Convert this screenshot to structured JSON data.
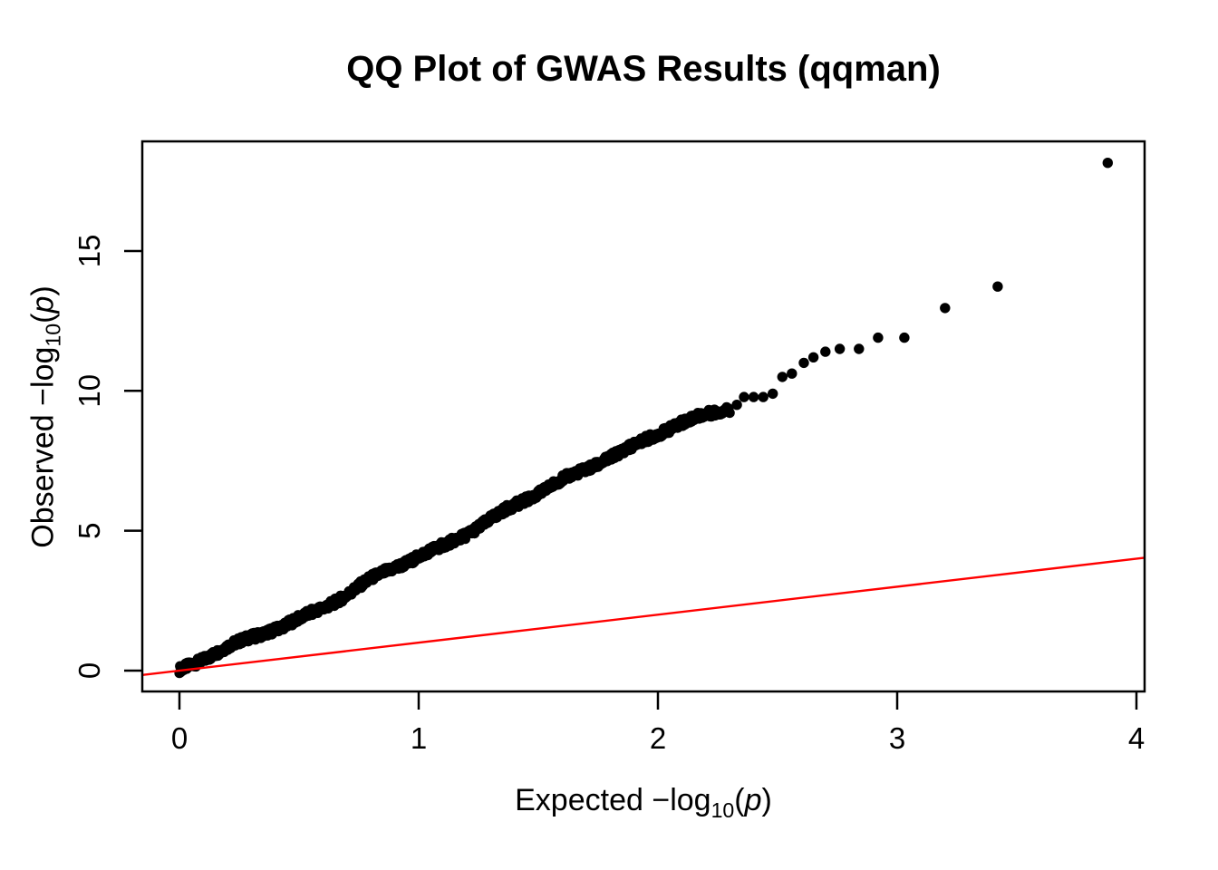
{
  "chart_data": {
    "type": "scatter",
    "title": "QQ Plot of GWAS Results (qqman)",
    "xlabel": "Expected −log10(p)",
    "ylabel": "Observed −log10(p)",
    "xlim": [
      -0.16,
      4.03
    ],
    "ylim": [
      -0.75,
      18.9
    ],
    "x_ticks": [
      0,
      1,
      2,
      3,
      4
    ],
    "y_ticks": [
      0,
      5,
      10,
      15
    ],
    "grid": false,
    "legend": "none",
    "point_color": "#000000",
    "background_color": "#ffffff",
    "axis_color": "#000000",
    "reference_line": {
      "type": "identity",
      "intercept": 0,
      "slope": 1,
      "color": "#ff0000"
    },
    "bulk_band": {
      "description": "dense overlapping points forming a thick band from origin to (2.3, 9.4)",
      "x_start": 0,
      "x_end": 2.3,
      "anchors": [
        [
          0.0,
          0.0
        ],
        [
          0.05,
          0.18
        ],
        [
          0.1,
          0.38
        ],
        [
          0.2,
          0.78
        ],
        [
          0.3,
          1.16
        ],
        [
          0.4,
          1.55
        ],
        [
          0.5,
          1.9
        ],
        [
          0.6,
          2.27
        ],
        [
          0.7,
          2.7
        ],
        [
          0.8,
          3.2
        ],
        [
          0.9,
          3.66
        ],
        [
          1.0,
          4.1
        ],
        [
          1.1,
          4.5
        ],
        [
          1.2,
          4.95
        ],
        [
          1.3,
          5.4
        ],
        [
          1.4,
          5.85
        ],
        [
          1.5,
          6.3
        ],
        [
          1.6,
          6.8
        ],
        [
          1.7,
          7.25
        ],
        [
          1.8,
          7.7
        ],
        [
          1.9,
          8.05
        ],
        [
          2.0,
          8.45
        ],
        [
          2.1,
          8.8
        ],
        [
          2.2,
          9.1
        ],
        [
          2.3,
          9.4
        ]
      ]
    },
    "tail_points": [
      [
        2.33,
        9.5
      ],
      [
        2.36,
        9.78
      ],
      [
        2.4,
        9.78
      ],
      [
        2.44,
        9.78
      ],
      [
        2.48,
        9.9
      ],
      [
        2.52,
        10.5
      ],
      [
        2.56,
        10.62
      ],
      [
        2.61,
        11.0
      ],
      [
        2.65,
        11.2
      ],
      [
        2.7,
        11.4
      ],
      [
        2.76,
        11.5
      ],
      [
        2.84,
        11.5
      ],
      [
        2.92,
        11.9
      ],
      [
        3.03,
        11.9
      ],
      [
        3.2,
        12.96
      ],
      [
        3.42,
        13.73
      ],
      [
        3.88,
        18.15
      ]
    ]
  },
  "label_parts": {
    "x": {
      "pre": "Expected  −log",
      "sub": "10",
      "open": "(",
      "var": "p",
      "close": ")"
    },
    "y": {
      "pre": "Observed  −log",
      "sub": "10",
      "open": "(",
      "var": "p",
      "close": ")"
    }
  }
}
